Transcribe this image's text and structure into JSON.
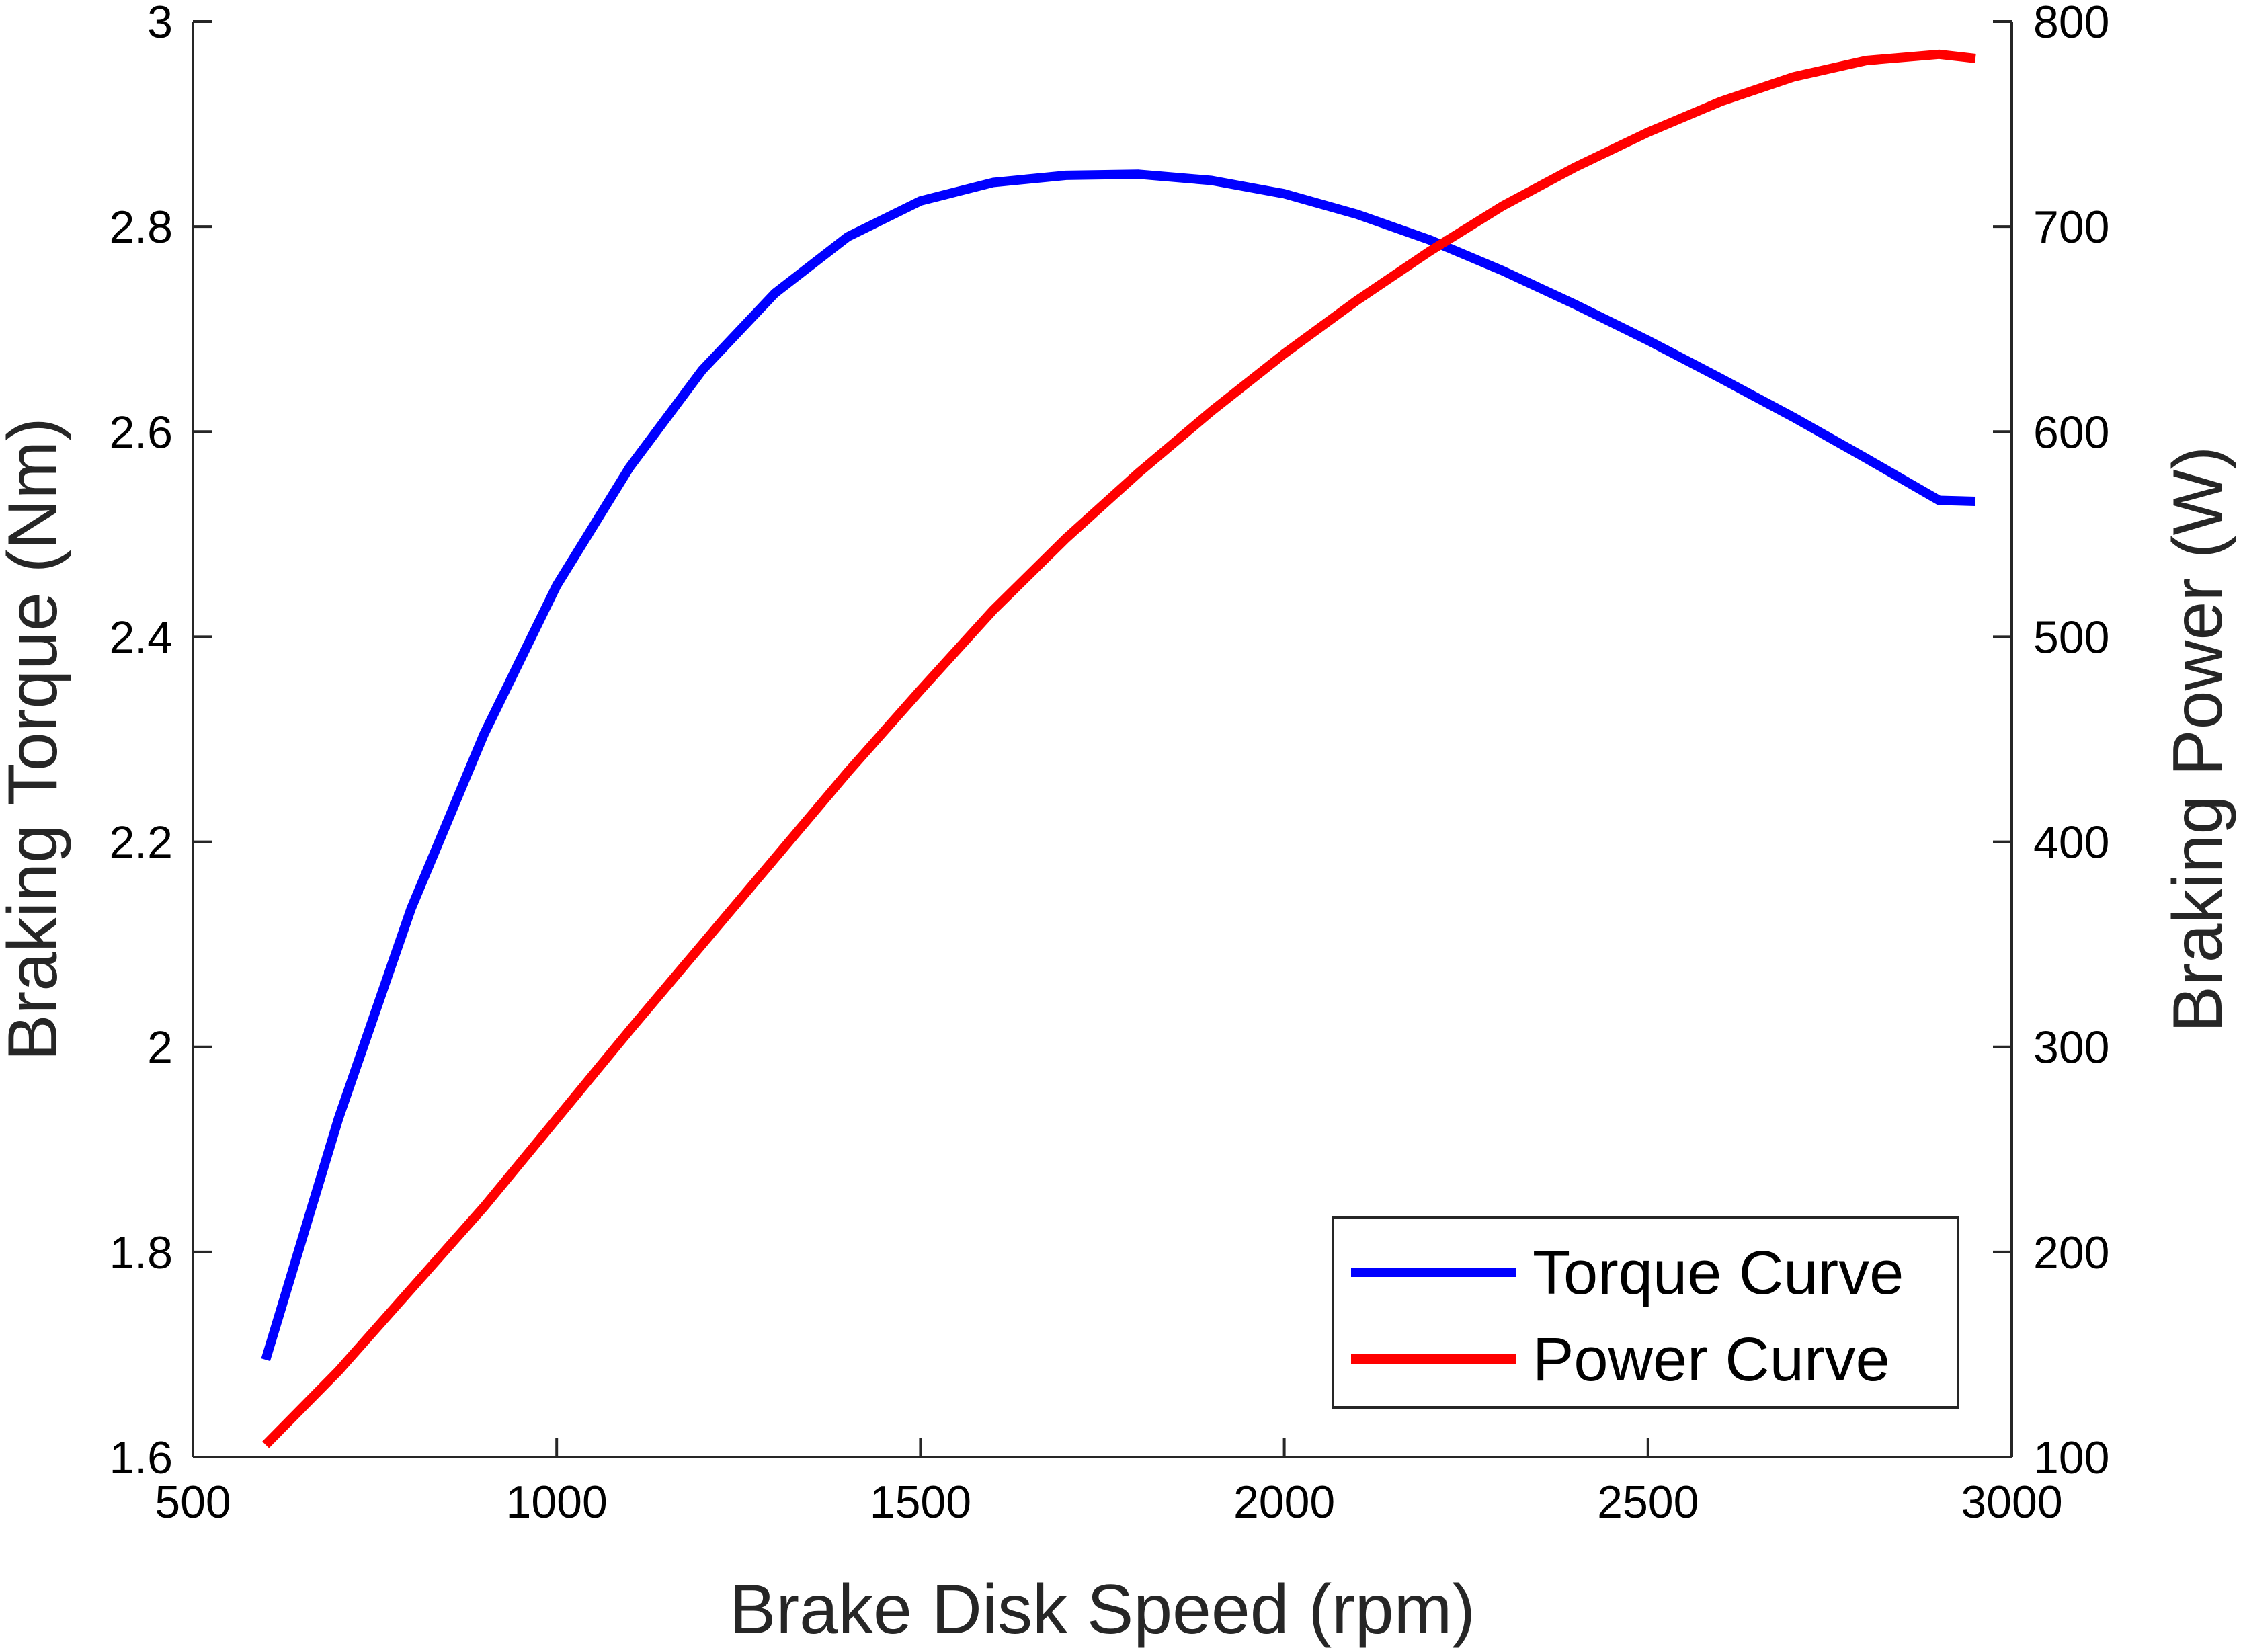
{
  "chart_data": {
    "type": "line",
    "title": "",
    "xlabel": "Brake Disk Speed (rpm)",
    "ylabel_left": "Braking Torque (Nm)",
    "ylabel_right": "Braking Power (W)",
    "xlim": [
      500,
      3000
    ],
    "ylim_left": [
      1.6,
      3.0
    ],
    "ylim_right": [
      100,
      800
    ],
    "x_ticks": [
      "500",
      "1000",
      "1500",
      "2000",
      "2500",
      "3000"
    ],
    "y_left_ticks": [
      "1.6",
      "1.8",
      "2",
      "2.2",
      "2.4",
      "2.6",
      "2.8",
      "3"
    ],
    "y_right_ticks": [
      "100",
      "200",
      "300",
      "400",
      "500",
      "600",
      "700",
      "800"
    ],
    "grid": false,
    "legend_position": "bottom-right",
    "x": [
      600,
      700,
      800,
      900,
      1000,
      1100,
      1200,
      1300,
      1400,
      1500,
      1600,
      1700,
      1800,
      1900,
      2000,
      2100,
      2200,
      2300,
      2400,
      2500,
      2600,
      2700,
      2800,
      2900,
      2950
    ],
    "series": [
      {
        "name": "Torque Curve",
        "axis": "left",
        "color": "#0000ff",
        "values": [
          1.695,
          1.93,
          2.135,
          2.305,
          2.45,
          2.565,
          2.66,
          2.735,
          2.79,
          2.825,
          2.843,
          2.85,
          2.851,
          2.845,
          2.832,
          2.812,
          2.787,
          2.757,
          2.724,
          2.689,
          2.652,
          2.614,
          2.574,
          2.533,
          2.532
        ]
      },
      {
        "name": "Power Curve",
        "axis": "right",
        "color": "#ff0000",
        "values": [
          106,
          142,
          182,
          222,
          265,
          308,
          350,
          392,
          434,
          474,
          513,
          548,
          580,
          610,
          638,
          664,
          688,
          710,
          729,
          746,
          761,
          773,
          781,
          784,
          782
        ]
      }
    ]
  }
}
